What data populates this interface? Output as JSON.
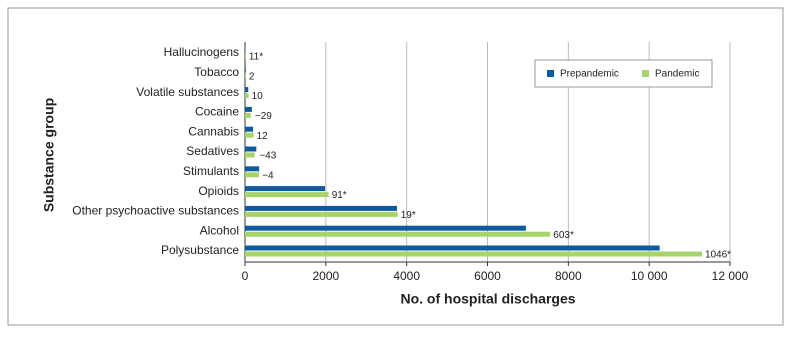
{
  "chart_data": {
    "type": "hbar",
    "xlabel": "No. of hospital discharges",
    "ylabel": "Substance group",
    "categories": [
      "Hallucinogens",
      "Tobacco",
      "Volatile substances",
      "Cocaine",
      "Cannabis",
      "Sedatives",
      "Stimulants",
      "Opioids",
      "Other psychoactive substances",
      "Alcohol",
      "Polysubstance"
    ],
    "series": [
      {
        "name": "Prepandemic",
        "color": "#0d5a9e",
        "values": [
          10,
          20,
          80,
          170,
          200,
          280,
          350,
          1980,
          3760,
          6950,
          10260
        ]
      },
      {
        "name": "Pandemic",
        "color": "#a6d46a",
        "values": [
          21,
          22,
          90,
          141,
          212,
          237,
          346,
          2071,
          3779,
          7553,
          11306
        ]
      }
    ],
    "difference_labels": [
      "11*",
      "2",
      "10",
      "−29",
      "12",
      "−43",
      "−4",
      "91*",
      "19*",
      "603*",
      "1046*"
    ],
    "xlim": [
      0,
      12000
    ],
    "xticks": [
      0,
      2000,
      4000,
      6000,
      8000,
      {
        "value": 10000,
        "label": "10 000"
      },
      {
        "value": 12000,
        "label": "12 000"
      }
    ],
    "grid": true,
    "legend": "upper right"
  }
}
